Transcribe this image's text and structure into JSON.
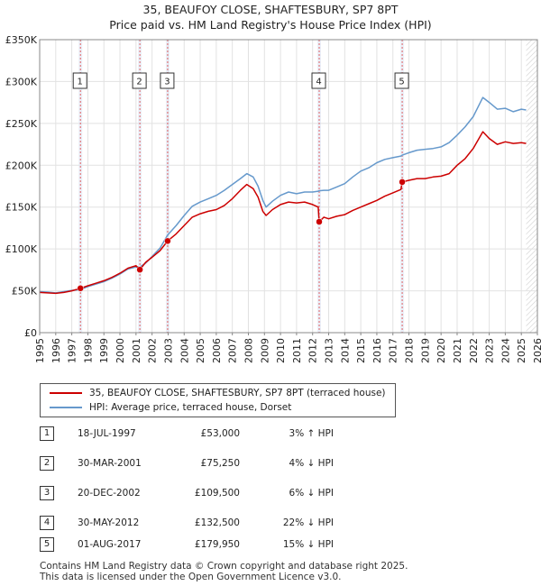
{
  "title_line1": "35, BEAUFOY CLOSE, SHAFTESBURY, SP7 8PT",
  "title_line2": "Price paid vs. HM Land Registry's House Price Index (HPI)",
  "chart_data": {
    "type": "line",
    "title": "35, BEAUFOY CLOSE, SHAFTESBURY, SP7 8PT — Price paid vs. HM Land Registry's House Price Index (HPI)",
    "xlim": [
      1995,
      2026
    ],
    "ylim": [
      0,
      350000
    ],
    "y_ticks": [
      0,
      50000,
      100000,
      150000,
      200000,
      250000,
      300000,
      350000
    ],
    "y_tick_labels": [
      "£0",
      "£50K",
      "£100K",
      "£150K",
      "£200K",
      "£250K",
      "£300K",
      "£350K"
    ],
    "x_ticks": [
      1995,
      1996,
      1997,
      1998,
      1999,
      2000,
      2001,
      2002,
      2003,
      2004,
      2005,
      2006,
      2007,
      2008,
      2009,
      2010,
      2011,
      2012,
      2013,
      2014,
      2015,
      2016,
      2017,
      2018,
      2019,
      2020,
      2021,
      2022,
      2023,
      2024,
      2025,
      2026
    ],
    "grid": true,
    "series": [
      {
        "name": "35, BEAUFOY CLOSE, SHAFTESBURY, SP7 8PT (terraced house)",
        "color": "#cc0000",
        "points": [
          [
            1995.0,
            48000
          ],
          [
            1995.5,
            47500
          ],
          [
            1996.0,
            47000
          ],
          [
            1996.5,
            48000
          ],
          [
            1997.0,
            50000
          ],
          [
            1997.54,
            53000
          ],
          [
            1998.0,
            56000
          ],
          [
            1998.5,
            59000
          ],
          [
            1999.0,
            62000
          ],
          [
            1999.5,
            66000
          ],
          [
            2000.0,
            71000
          ],
          [
            2000.5,
            77000
          ],
          [
            2001.0,
            80000
          ],
          [
            2001.24,
            75250
          ],
          [
            2001.6,
            84000
          ],
          [
            2002.0,
            90000
          ],
          [
            2002.5,
            98000
          ],
          [
            2002.97,
            109500
          ],
          [
            2003.5,
            118000
          ],
          [
            2004.0,
            128000
          ],
          [
            2004.5,
            138000
          ],
          [
            2005.0,
            142000
          ],
          [
            2005.5,
            145000
          ],
          [
            2006.0,
            147000
          ],
          [
            2006.5,
            152000
          ],
          [
            2007.0,
            160000
          ],
          [
            2007.5,
            170000
          ],
          [
            2007.9,
            177000
          ],
          [
            2008.3,
            172000
          ],
          [
            2008.6,
            162000
          ],
          [
            2008.9,
            145000
          ],
          [
            2009.1,
            140000
          ],
          [
            2009.5,
            147000
          ],
          [
            2010.0,
            153000
          ],
          [
            2010.5,
            156000
          ],
          [
            2011.0,
            155000
          ],
          [
            2011.5,
            156000
          ],
          [
            2012.0,
            153000
          ],
          [
            2012.35,
            150000
          ],
          [
            2012.41,
            132500
          ],
          [
            2012.7,
            138000
          ],
          [
            2013.0,
            136000
          ],
          [
            2013.5,
            139000
          ],
          [
            2014.0,
            141000
          ],
          [
            2014.5,
            146000
          ],
          [
            2015.0,
            150000
          ],
          [
            2015.5,
            154000
          ],
          [
            2016.0,
            158000
          ],
          [
            2016.5,
            163000
          ],
          [
            2017.0,
            167000
          ],
          [
            2017.5,
            171000
          ],
          [
            2017.58,
            179950
          ],
          [
            2018.0,
            182000
          ],
          [
            2018.5,
            184000
          ],
          [
            2019.0,
            184000
          ],
          [
            2019.5,
            186000
          ],
          [
            2020.0,
            187000
          ],
          [
            2020.5,
            190000
          ],
          [
            2021.0,
            200000
          ],
          [
            2021.5,
            208000
          ],
          [
            2022.0,
            220000
          ],
          [
            2022.6,
            240000
          ],
          [
            2023.0,
            232000
          ],
          [
            2023.5,
            225000
          ],
          [
            2024.0,
            228000
          ],
          [
            2024.5,
            226000
          ],
          [
            2025.0,
            227000
          ],
          [
            2025.3,
            226000
          ]
        ]
      },
      {
        "name": "HPI: Average price, terraced house, Dorset",
        "color": "#6699cc",
        "points": [
          [
            1995.0,
            49000
          ],
          [
            1995.5,
            48500
          ],
          [
            1996.0,
            47500
          ],
          [
            1996.5,
            49000
          ],
          [
            1997.0,
            50500
          ],
          [
            1997.54,
            51500
          ],
          [
            1998.0,
            55000
          ],
          [
            1998.5,
            58000
          ],
          [
            1999.0,
            61000
          ],
          [
            1999.5,
            65000
          ],
          [
            2000.0,
            70000
          ],
          [
            2000.5,
            76000
          ],
          [
            2001.0,
            78500
          ],
          [
            2001.24,
            78500
          ],
          [
            2001.6,
            83000
          ],
          [
            2002.0,
            91000
          ],
          [
            2002.5,
            101000
          ],
          [
            2002.97,
            116500
          ],
          [
            2003.5,
            128000
          ],
          [
            2004.0,
            140000
          ],
          [
            2004.5,
            151000
          ],
          [
            2005.0,
            156000
          ],
          [
            2005.5,
            160000
          ],
          [
            2006.0,
            164000
          ],
          [
            2006.5,
            170000
          ],
          [
            2007.0,
            177000
          ],
          [
            2007.5,
            184000
          ],
          [
            2007.9,
            190000
          ],
          [
            2008.3,
            186000
          ],
          [
            2008.6,
            175000
          ],
          [
            2008.9,
            158000
          ],
          [
            2009.1,
            150000
          ],
          [
            2009.5,
            157000
          ],
          [
            2010.0,
            164000
          ],
          [
            2010.5,
            168000
          ],
          [
            2011.0,
            166000
          ],
          [
            2011.5,
            168000
          ],
          [
            2012.0,
            168000
          ],
          [
            2012.35,
            169000
          ],
          [
            2012.41,
            169500
          ],
          [
            2012.7,
            170000
          ],
          [
            2013.0,
            170000
          ],
          [
            2013.5,
            174000
          ],
          [
            2014.0,
            178000
          ],
          [
            2014.5,
            186000
          ],
          [
            2015.0,
            193000
          ],
          [
            2015.5,
            197000
          ],
          [
            2016.0,
            203000
          ],
          [
            2016.5,
            207000
          ],
          [
            2017.0,
            209000
          ],
          [
            2017.5,
            211000
          ],
          [
            2017.58,
            212000
          ],
          [
            2018.0,
            215000
          ],
          [
            2018.5,
            218000
          ],
          [
            2019.0,
            219000
          ],
          [
            2019.5,
            220000
          ],
          [
            2020.0,
            222000
          ],
          [
            2020.5,
            227000
          ],
          [
            2021.0,
            236000
          ],
          [
            2021.5,
            246000
          ],
          [
            2022.0,
            258000
          ],
          [
            2022.6,
            281000
          ],
          [
            2023.0,
            275000
          ],
          [
            2023.5,
            267000
          ],
          [
            2024.0,
            268000
          ],
          [
            2024.5,
            264000
          ],
          [
            2025.0,
            267000
          ],
          [
            2025.3,
            266000
          ]
        ]
      }
    ],
    "sales": [
      {
        "num": "1",
        "x": 1997.54,
        "price": 53000,
        "date": "18-JUL-1997",
        "price_label": "£53,000",
        "diff": "3% ↑ HPI"
      },
      {
        "num": "2",
        "x": 2001.24,
        "price": 75250,
        "date": "30-MAR-2001",
        "price_label": "£75,250",
        "diff": "4% ↓ HPI"
      },
      {
        "num": "3",
        "x": 2002.97,
        "price": 109500,
        "date": "20-DEC-2002",
        "price_label": "£109,500",
        "diff": "6% ↓ HPI"
      },
      {
        "num": "4",
        "x": 2012.41,
        "price": 132500,
        "date": "30-MAY-2012",
        "price_label": "£132,500",
        "diff": "22% ↓ HPI"
      },
      {
        "num": "5",
        "x": 2017.58,
        "price": 179950,
        "date": "01-AUG-2017",
        "price_label": "£179,950",
        "diff": "15% ↓ HPI"
      }
    ],
    "future_from": 2025.3
  },
  "legend": {
    "property_label": "35, BEAUFOY CLOSE, SHAFTESBURY, SP7 8PT (terraced house)",
    "hpi_label": "HPI: Average price, terraced house, Dorset",
    "property_color": "#cc0000",
    "hpi_color": "#6699cc"
  },
  "footer": {
    "line1": "Contains HM Land Registry data © Crown copyright and database right 2025.",
    "line2": "This data is licensed under the Open Government Licence v3.0."
  }
}
